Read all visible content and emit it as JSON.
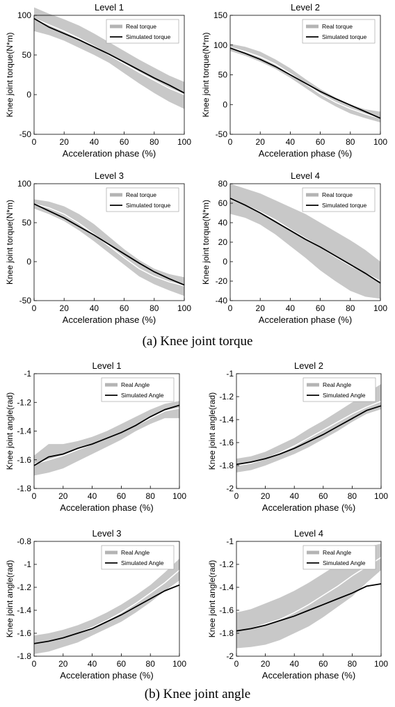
{
  "captions": {
    "torque": "(a) Knee joint torque",
    "angle": "(b) Knee joint angle"
  },
  "colors": {
    "band": "#c8c8c8",
    "real_mean": "#ffffff",
    "simulated": "#000000",
    "legend_real": "#b4b4b4"
  },
  "chart_data": [
    {
      "type": "line",
      "title": "Level 1",
      "xlabel": "Acceleration phase (%)",
      "ylabel": "Knee joint torque(N*m)",
      "xlim": [
        0,
        100
      ],
      "ylim": [
        -50,
        100
      ],
      "xticks": [
        0,
        20,
        40,
        60,
        80,
        100
      ],
      "yticks": [
        -50,
        0,
        50,
        100
      ],
      "legend": {
        "entries": [
          "Real torque",
          "Simulated torque"
        ],
        "placement": "top-right"
      },
      "x": [
        0,
        10,
        20,
        30,
        40,
        50,
        60,
        70,
        80,
        90,
        100
      ],
      "series": [
        {
          "name": "Real torque",
          "kind": "band",
          "values": [
            96,
            88,
            80,
            71,
            61,
            50,
            39,
            28,
            18,
            8,
            0
          ],
          "upper": [
            110,
            102,
            95,
            87,
            77,
            66,
            55,
            44,
            34,
            24,
            16
          ],
          "lower": [
            80,
            75,
            68,
            59,
            50,
            40,
            27,
            14,
            2,
            -9,
            -18
          ]
        },
        {
          "name": "Simulated torque",
          "kind": "line",
          "values": [
            96,
            85,
            77,
            69,
            60,
            51,
            41,
            31,
            21,
            12,
            2
          ]
        }
      ]
    },
    {
      "type": "line",
      "title": "Level 2",
      "xlabel": "Acceleration phase (%)",
      "ylabel": "Knee joint torque(N*m)",
      "xlim": [
        0,
        100
      ],
      "ylim": [
        -50,
        150
      ],
      "xticks": [
        0,
        20,
        40,
        60,
        80,
        100
      ],
      "yticks": [
        -50,
        0,
        50,
        100,
        150
      ],
      "legend": {
        "entries": [
          "Real torque",
          "Simulated torque"
        ],
        "placement": "top-right"
      },
      "x": [
        0,
        10,
        20,
        30,
        40,
        50,
        60,
        70,
        80,
        90,
        100
      ],
      "series": [
        {
          "name": "Real torque",
          "kind": "band",
          "values": [
            96,
            89,
            80,
            68,
            52,
            35,
            18,
            4,
            -7,
            -16,
            -23
          ],
          "upper": [
            102,
            97,
            89,
            76,
            61,
            43,
            26,
            12,
            0,
            -8,
            -12
          ],
          "lower": [
            90,
            82,
            72,
            60,
            45,
            28,
            11,
            -3,
            -15,
            -23,
            -30
          ]
        },
        {
          "name": "Simulated torque",
          "kind": "line",
          "values": [
            95,
            86,
            76,
            64,
            50,
            36,
            22,
            10,
            -1,
            -12,
            -23
          ]
        }
      ]
    },
    {
      "type": "line",
      "title": "Level 3",
      "xlabel": "Acceleration phase (%)",
      "ylabel": "Knee joint torque(N*m)",
      "xlim": [
        0,
        100
      ],
      "ylim": [
        -50,
        100
      ],
      "xticks": [
        0,
        20,
        40,
        60,
        80,
        100
      ],
      "yticks": [
        -50,
        0,
        50,
        100
      ],
      "legend": {
        "entries": [
          "Real torque",
          "Simulated torque"
        ],
        "placement": "top-right"
      },
      "x": [
        0,
        10,
        20,
        30,
        40,
        50,
        60,
        70,
        80,
        90,
        100
      ],
      "series": [
        {
          "name": "Real torque",
          "kind": "band",
          "values": [
            74,
            69,
            61,
            49,
            35,
            20,
            5,
            -9,
            -19,
            -26,
            -31
          ],
          "upper": [
            80,
            77,
            71,
            61,
            48,
            32,
            16,
            2,
            -9,
            -16,
            -20
          ],
          "lower": [
            68,
            61,
            52,
            40,
            26,
            11,
            -4,
            -19,
            -29,
            -37,
            -44
          ]
        },
        {
          "name": "Simulated torque",
          "kind": "line",
          "values": [
            74,
            65,
            56,
            45,
            34,
            22,
            10,
            -2,
            -13,
            -22,
            -30
          ]
        }
      ]
    },
    {
      "type": "line",
      "title": "Level 4",
      "xlabel": "Acceleration phase (%)",
      "ylabel": "Knee joint torque(N*m)",
      "xlim": [
        0,
        100
      ],
      "ylim": [
        -40,
        80
      ],
      "xticks": [
        0,
        20,
        40,
        60,
        80,
        100
      ],
      "yticks": [
        -40,
        -20,
        0,
        20,
        40,
        60,
        80
      ],
      "legend": {
        "entries": [
          "Real torque",
          "Simulated torque"
        ],
        "placement": "top-right"
      },
      "x": [
        0,
        10,
        20,
        30,
        40,
        50,
        60,
        70,
        80,
        90,
        100
      ],
      "series": [
        {
          "name": "Real torque",
          "kind": "band",
          "values": [
            64,
            58,
            51,
            43,
            33,
            24,
            15,
            5,
            -4,
            -12,
            -20
          ],
          "upper": [
            80,
            75,
            70,
            63,
            56,
            49,
            40,
            31,
            22,
            12,
            0
          ],
          "lower": [
            49,
            45,
            38,
            28,
            16,
            4,
            -9,
            -20,
            -30,
            -36,
            -38
          ]
        },
        {
          "name": "Simulated torque",
          "kind": "line",
          "values": [
            65,
            58,
            50,
            41,
            32,
            23,
            15,
            6,
            -3,
            -12,
            -22
          ]
        }
      ]
    },
    {
      "type": "line",
      "title": "Level 1",
      "xlabel": "Acceleration phase (%)",
      "ylabel": "Knee joint angle(rad)",
      "xlim": [
        0,
        100
      ],
      "ylim": [
        -1.8,
        -1
      ],
      "xticks": [
        0,
        20,
        40,
        60,
        80,
        100
      ],
      "yticks": [
        -1.8,
        -1.6,
        -1.4,
        -1.2,
        -1
      ],
      "legend": {
        "entries": [
          "Real Angle",
          "Simulated Angle"
        ],
        "placement": "top-right"
      },
      "x": [
        0,
        10,
        20,
        30,
        40,
        50,
        60,
        70,
        80,
        90,
        100
      ],
      "series": [
        {
          "name": "Real Angle",
          "kind": "band",
          "values": [
            -1.63,
            -1.6,
            -1.57,
            -1.53,
            -1.49,
            -1.45,
            -1.41,
            -1.36,
            -1.31,
            -1.26,
            -1.24
          ],
          "upper": [
            -1.57,
            -1.49,
            -1.49,
            -1.47,
            -1.44,
            -1.4,
            -1.35,
            -1.3,
            -1.25,
            -1.21,
            -1.19
          ],
          "lower": [
            -1.71,
            -1.69,
            -1.66,
            -1.61,
            -1.56,
            -1.51,
            -1.46,
            -1.4,
            -1.35,
            -1.31,
            -1.31
          ]
        },
        {
          "name": "Simulated Angle",
          "kind": "line",
          "values": [
            -1.64,
            -1.58,
            -1.56,
            -1.52,
            -1.49,
            -1.45,
            -1.41,
            -1.36,
            -1.3,
            -1.25,
            -1.22
          ]
        }
      ]
    },
    {
      "type": "line",
      "title": "Level 2",
      "xlabel": "Acceleration phase (%)",
      "ylabel": "Knee joint angle(rad)",
      "xlim": [
        0,
        100
      ],
      "ylim": [
        -2,
        -1
      ],
      "xticks": [
        0,
        20,
        40,
        60,
        80,
        100
      ],
      "yticks": [
        -2,
        -1.8,
        -1.6,
        -1.4,
        -1.2,
        -1
      ],
      "legend": {
        "entries": [
          "Real Angle",
          "Simulated Angle"
        ],
        "placement": "top-right"
      },
      "x": [
        0,
        10,
        20,
        30,
        40,
        50,
        60,
        70,
        80,
        90,
        100
      ],
      "series": [
        {
          "name": "Real Angle",
          "kind": "band",
          "values": [
            -1.8,
            -1.78,
            -1.74,
            -1.69,
            -1.63,
            -1.56,
            -1.49,
            -1.42,
            -1.35,
            -1.29,
            -1.24
          ],
          "upper": [
            -1.74,
            -1.72,
            -1.68,
            -1.62,
            -1.56,
            -1.48,
            -1.41,
            -1.33,
            -1.25,
            -1.17,
            -1.09
          ],
          "lower": [
            -1.86,
            -1.84,
            -1.8,
            -1.75,
            -1.7,
            -1.64,
            -1.57,
            -1.5,
            -1.42,
            -1.35,
            -1.31
          ]
        },
        {
          "name": "Simulated Angle",
          "kind": "line",
          "values": [
            -1.79,
            -1.77,
            -1.74,
            -1.7,
            -1.65,
            -1.59,
            -1.53,
            -1.46,
            -1.39,
            -1.32,
            -1.28
          ]
        }
      ]
    },
    {
      "type": "line",
      "title": "Level 3",
      "xlabel": "Acceleration phase (%)",
      "ylabel": "Knee joint angle(rad)",
      "xlim": [
        0,
        100
      ],
      "ylim": [
        -1.8,
        -0.8
      ],
      "xticks": [
        0,
        20,
        40,
        60,
        80,
        100
      ],
      "yticks": [
        -1.8,
        -1.6,
        -1.4,
        -1.2,
        -1,
        -0.8
      ],
      "legend": {
        "entries": [
          "Real Angle",
          "Simulated Angle"
        ],
        "placement": "top-right"
      },
      "x": [
        0,
        10,
        20,
        30,
        40,
        50,
        60,
        70,
        80,
        90,
        100
      ],
      "series": [
        {
          "name": "Real Angle",
          "kind": "band",
          "values": [
            -1.69,
            -1.67,
            -1.64,
            -1.6,
            -1.55,
            -1.49,
            -1.42,
            -1.34,
            -1.25,
            -1.16,
            -1.05
          ],
          "upper": [
            -1.62,
            -1.6,
            -1.57,
            -1.53,
            -1.48,
            -1.42,
            -1.35,
            -1.27,
            -1.18,
            -1.07,
            -0.95
          ],
          "lower": [
            -1.78,
            -1.76,
            -1.72,
            -1.68,
            -1.62,
            -1.56,
            -1.5,
            -1.42,
            -1.33,
            -1.23,
            -1.14
          ]
        },
        {
          "name": "Simulated Angle",
          "kind": "line",
          "values": [
            -1.69,
            -1.67,
            -1.64,
            -1.6,
            -1.56,
            -1.5,
            -1.44,
            -1.37,
            -1.3,
            -1.23,
            -1.18
          ]
        }
      ]
    },
    {
      "type": "line",
      "title": "Level 4",
      "xlabel": "Acceleration phase (%)",
      "ylabel": "Knee joint angle(rad)",
      "xlim": [
        0,
        100
      ],
      "ylim": [
        -2,
        -1
      ],
      "xticks": [
        0,
        20,
        40,
        60,
        80,
        100
      ],
      "yticks": [
        -2,
        -1.8,
        -1.6,
        -1.4,
        -1.2,
        -1
      ],
      "legend": {
        "entries": [
          "Real Angle",
          "Simulated Angle"
        ],
        "placement": "top-right"
      },
      "x": [
        0,
        10,
        20,
        30,
        40,
        50,
        60,
        70,
        80,
        90,
        100
      ],
      "series": [
        {
          "name": "Real Angle",
          "kind": "band",
          "values": [
            -1.78,
            -1.76,
            -1.72,
            -1.68,
            -1.62,
            -1.55,
            -1.47,
            -1.39,
            -1.3,
            -1.22,
            -1.14
          ],
          "upper": [
            -1.62,
            -1.59,
            -1.54,
            -1.49,
            -1.43,
            -1.36,
            -1.28,
            -1.2,
            -1.11,
            -1.05,
            -1.02
          ],
          "lower": [
            -1.93,
            -1.92,
            -1.9,
            -1.86,
            -1.8,
            -1.74,
            -1.66,
            -1.57,
            -1.48,
            -1.36,
            -1.25
          ]
        },
        {
          "name": "Simulated Angle",
          "kind": "line",
          "values": [
            -1.78,
            -1.76,
            -1.73,
            -1.69,
            -1.65,
            -1.6,
            -1.55,
            -1.5,
            -1.45,
            -1.39,
            -1.37
          ]
        }
      ]
    }
  ]
}
